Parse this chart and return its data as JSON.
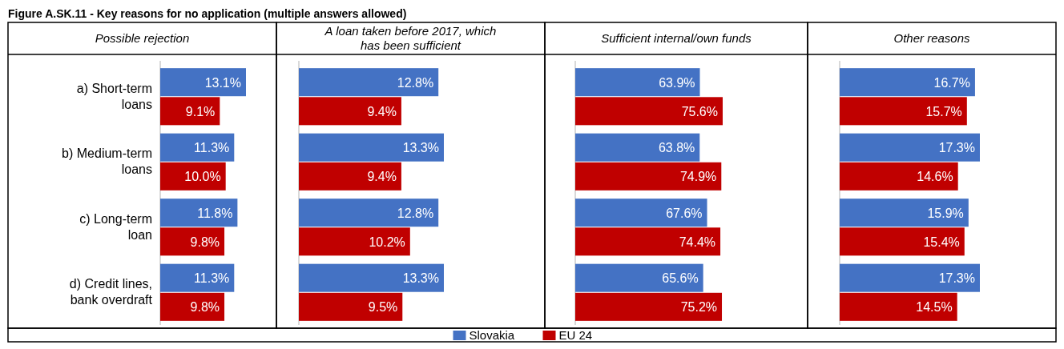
{
  "chart_data": [
    {
      "type": "bar",
      "orientation": "horizontal",
      "title": "Possible rejection",
      "annotations": [
        "Figure A.SK.11 - Key reasons for no application (multiple answers allowed)"
      ],
      "legend": "bottom",
      "categories": [
        "a) Short-term loans",
        "b) Medium-term loans",
        "c) Long-term loan",
        "d) Credit lines, bank overdraft"
      ],
      "series": [
        {
          "name": "Slovakia",
          "color": "#4472c4",
          "values": [
            13.1,
            11.3,
            11.8,
            11.3
          ],
          "value_labels": [
            "13.1%",
            "11.3%",
            "11.8%",
            "11.3%"
          ]
        },
        {
          "name": "EU 24",
          "color": "#c00000",
          "values": [
            9.1,
            10.0,
            9.8,
            9.8
          ],
          "value_labels": [
            "9.1%",
            "10.0%",
            "9.8%",
            "9.8%"
          ]
        }
      ]
    },
    {
      "type": "bar",
      "orientation": "horizontal",
      "title": "A loan taken before 2017, which has been sufficient",
      "series": [
        {
          "color": "#4472c4",
          "values": [
            12.8,
            13.3,
            12.8,
            13.3
          ],
          "value_labels": [
            "12.8%",
            "13.3%",
            "12.8%",
            "13.3%"
          ]
        },
        {
          "color": "#c00000",
          "values": [
            9.4,
            9.4,
            10.2,
            9.5
          ],
          "value_labels": [
            "9.4%",
            "9.4%",
            "10.2%",
            "9.5%"
          ]
        }
      ]
    },
    {
      "type": "bar",
      "orientation": "horizontal",
      "title": "Sufficient internal/own funds",
      "series": [
        {
          "color": "#4472c4",
          "values": [
            63.9,
            63.8,
            67.6,
            65.6
          ],
          "value_labels": [
            "63.9%",
            "63.8%",
            "67.6%",
            "65.6%"
          ]
        },
        {
          "color": "#c00000",
          "values": [
            75.6,
            74.9,
            74.4,
            75.2
          ],
          "value_labels": [
            "75.6%",
            "74.9%",
            "74.4%",
            "75.2%"
          ]
        }
      ]
    },
    {
      "type": "bar",
      "orientation": "horizontal",
      "title": "Other reasons",
      "series": [
        {
          "color": "#4472c4",
          "values": [
            16.7,
            17.3,
            15.9,
            17.3
          ],
          "value_labels": [
            "16.7%",
            "17.3%",
            "15.9%",
            "17.3%"
          ]
        },
        {
          "color": "#c00000",
          "values": [
            15.7,
            14.6,
            15.4,
            14.5
          ],
          "value_labels": [
            "15.7%",
            "14.6%",
            "15.4%",
            "14.5%"
          ]
        }
      ]
    }
  ]
}
